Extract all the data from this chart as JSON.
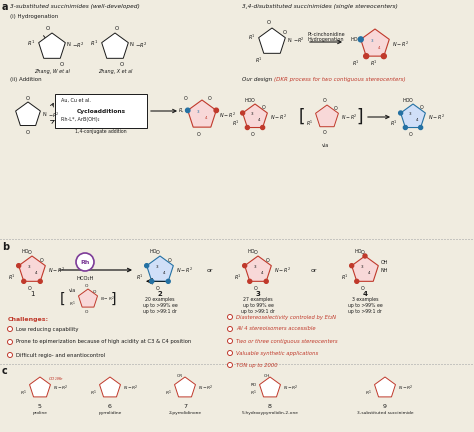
{
  "bg_color": "#f0ece0",
  "white": "#ffffff",
  "red": "#c0392b",
  "blue": "#2471a3",
  "dark": "#1a1a1a",
  "purple": "#7d3c98",
  "gray": "#888888",
  "fig_w": 4.74,
  "fig_h": 4.32,
  "dpi": 100,
  "sec_a_label": "a",
  "sec_b_label": "b",
  "sec_c_label": "c",
  "sec_a_left": "3-substituted succinimides (well-developed)",
  "sec_a_right": "3,4-disubstituted succinimides (single stereocenters)",
  "hydrogenation_i": "(i) Hydrogenation",
  "addition_ii": "(ii) Addition",
  "zhang_w": "Zhang, W et al",
  "zhang_x": "Zhang, X et al",
  "au_cu": "Au, Cu et al.",
  "cycloadditions": "Cycloadditions",
  "rh_l": "Rh-L*, ArB(OH)₂",
  "conj_add": "1,4-conjugate addition",
  "pt_cinchonidine": "Pt-cinchonidine",
  "hydrogenation": "Hydrogenation",
  "our_design_plain": "Our design ",
  "our_design_italic": "(DKR process for two contiguous stereocenters)",
  "rh_label": "Rh",
  "hcooh": "HCO₂H",
  "via": "via",
  "c1": "1",
  "c2": "2",
  "c3": "3",
  "c4": "4",
  "ex20": "20 examples",
  "ee20": "up to >99% ee",
  "dr20": "up to >99:1 dr",
  "ex27": "27 examples",
  "ee27": "up to 99% ee",
  "dr27": "up to >99:1 dr",
  "ex3": "3 examples",
  "ee3": "up to >99% ee",
  "dr3": "up to >99:1 dr",
  "or_label": "or",
  "challenges_title": "Challenges:",
  "ch1": "Low reducing capability",
  "ch2": "Prone to epimerization because of high acidity at C3 & C4 position",
  "ch3": "Difficult regio- and enantiocontrol",
  "adv1": "Diastereoselectivity controled by Et₂N",
  "adv2": "All 4 stereoisomers accessible",
  "adv3": "Two or three contiguous stereocenters",
  "adv4": "Valuable synthetic applications",
  "adv5": "TON up to 2000",
  "c5_num": "5",
  "c6_num": "6",
  "c7_num": "7",
  "c8_num": "8",
  "c9_num": "9",
  "proline": "proline",
  "pyrrolidine": "pyrrolidine",
  "pyrrolidinone": "2-pyrrolidinone",
  "hydroxy": "5-hydroxypyrrolidin-2-one",
  "succinimide": "3-substituted succinimide"
}
